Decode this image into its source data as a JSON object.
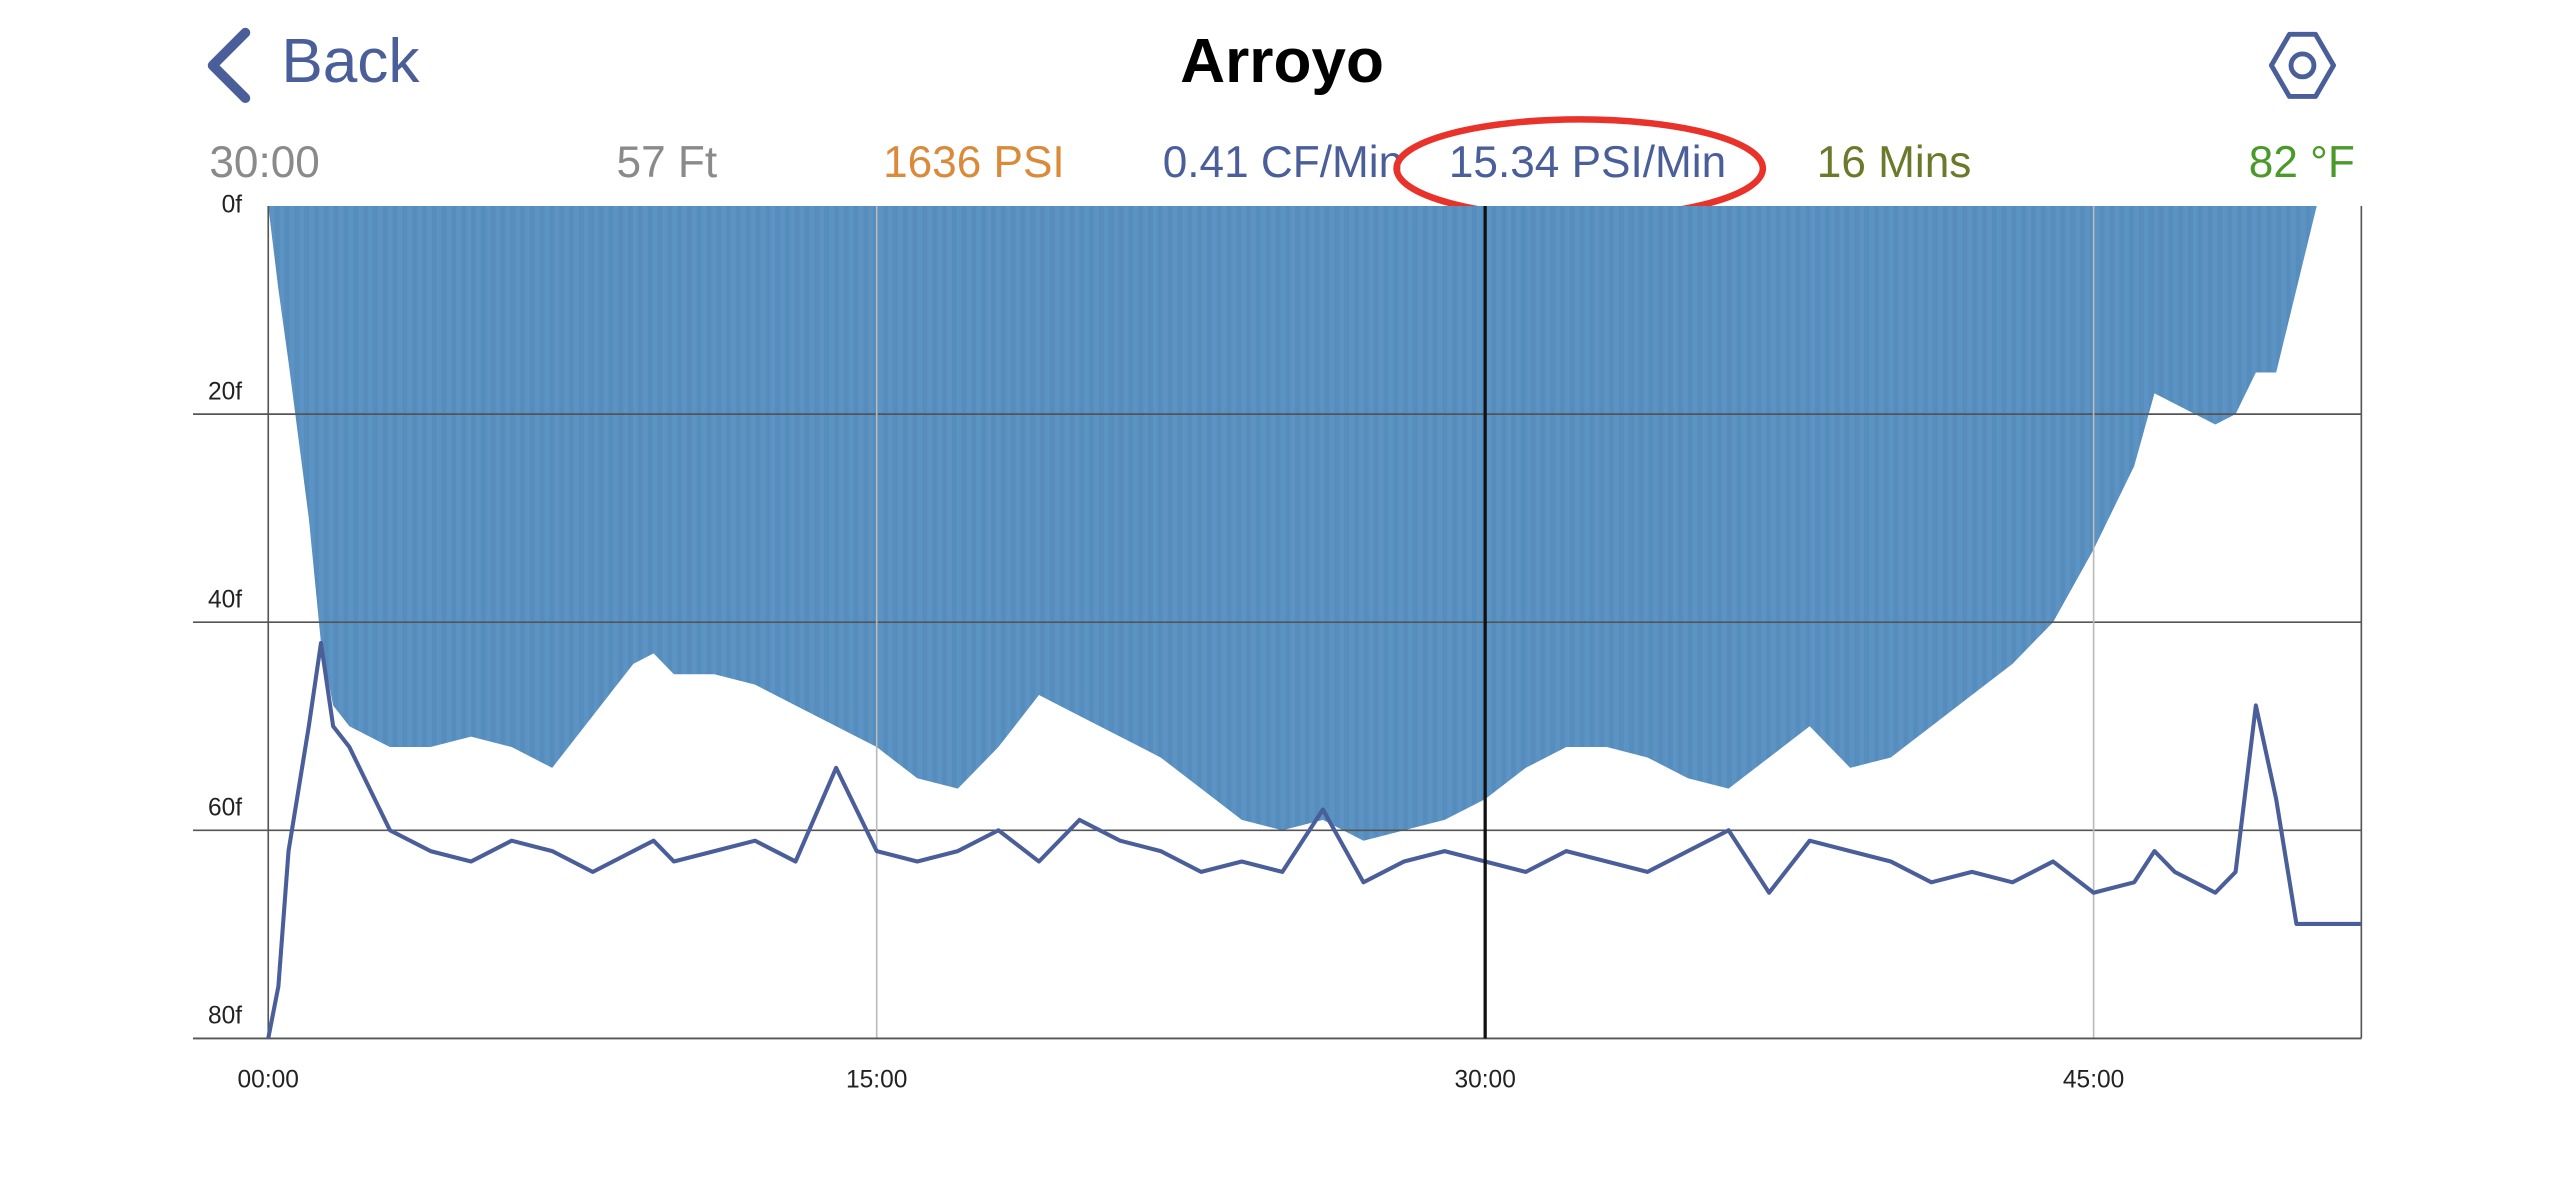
{
  "header": {
    "back": "Back",
    "title": "Arroyo"
  },
  "stats": [
    {
      "text": "30:00",
      "color": "#8a8a8a"
    },
    {
      "text": "57 Ft",
      "color": "#8a8a8a"
    },
    {
      "text": "1636 PSI",
      "color": "#d98a3a"
    },
    {
      "text": "0.41 CF/Min",
      "color": "#4a5e9a"
    },
    {
      "text": "15.34 PSI/Min",
      "color": "#4a5e9a"
    },
    {
      "text": "16 Mins",
      "color": "#6b7a2a"
    },
    {
      "text": "82 °F",
      "color": "#4a9a2a"
    }
  ],
  "chart_data": {
    "type": "area-line",
    "x": [
      0,
      0.25,
      0.5,
      1,
      1.3,
      1.6,
      2,
      3,
      4,
      5,
      6,
      7,
      8,
      9,
      9.5,
      10,
      11,
      12,
      13,
      14,
      15,
      16,
      17,
      18,
      19,
      20,
      21,
      22,
      23,
      24,
      25,
      26,
      27,
      28,
      29,
      30,
      31,
      32,
      33,
      34,
      35,
      36,
      37,
      38,
      39,
      40,
      41,
      42,
      43,
      44,
      45,
      46,
      46.5,
      47,
      48,
      48.5,
      49,
      49.5,
      50,
      50.5,
      51,
      51.6
    ],
    "series": [
      {
        "color": "#5b93c4",
        "values": [
          0,
          8,
          15,
          30,
          42,
          48,
          50,
          52,
          52,
          51,
          52,
          54,
          49,
          44,
          43,
          45,
          45,
          46,
          48,
          50,
          52,
          55,
          56,
          52,
          47,
          49,
          51,
          53,
          56,
          59,
          60,
          59,
          61,
          60,
          59,
          57,
          54,
          52,
          52,
          53,
          55,
          56,
          53,
          50,
          54,
          53,
          50,
          47,
          44,
          40,
          33,
          25,
          18,
          19,
          21,
          20,
          16,
          16,
          8,
          0,
          0,
          0
        ]
      },
      {
        "color": "#4a5e9a",
        "values": [
          80,
          75,
          62,
          50,
          42,
          50,
          52,
          60,
          62,
          63,
          61,
          62,
          64,
          62,
          61,
          63,
          62,
          61,
          63,
          54,
          62,
          63,
          62,
          60,
          63,
          59,
          61,
          62,
          64,
          63,
          64,
          58,
          65,
          63,
          62,
          63,
          64,
          62,
          63,
          64,
          62,
          60,
          66,
          61,
          62,
          63,
          65,
          64,
          65,
          63,
          66,
          65,
          62,
          64,
          66,
          64,
          48,
          57,
          69,
          69,
          69,
          69
        ]
      }
    ],
    "xlim": [
      0,
      51.6
    ],
    "xticks": [
      {
        "value": 0,
        "label": "00:00"
      },
      {
        "value": 15,
        "label": "15:00"
      },
      {
        "value": 30,
        "label": "30:00"
      },
      {
        "value": 45,
        "label": "45:00"
      }
    ],
    "ylim": [
      0,
      80
    ],
    "y_inverted": true,
    "yticks": [
      {
        "value": 0,
        "label": "0f"
      },
      {
        "value": 20,
        "label": "20f"
      },
      {
        "value": 40,
        "label": "40f"
      },
      {
        "value": 60,
        "label": "60f"
      },
      {
        "value": 80,
        "label": "80f"
      }
    ],
    "cursor": 30,
    "grid": true
  }
}
